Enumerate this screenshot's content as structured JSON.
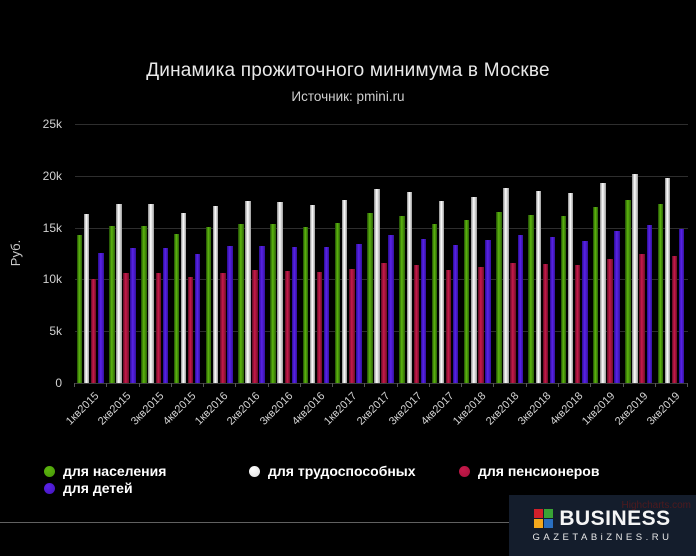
{
  "chart": {
    "title": "Динамика прожиточного минимума в Москве",
    "subtitle": "Источник: pmini.ru",
    "ylabel": "Руб."
  },
  "chart_data": {
    "type": "bar",
    "title": "Динамика прожиточного минимума в Москве",
    "subtitle": "Источник: pmini.ru",
    "xlabel": "",
    "ylabel": "Руб.",
    "ylim": [
      0,
      25000
    ],
    "grid": true,
    "legend_position": "bottom-left",
    "yticks": [
      {
        "value": 0,
        "label": "0"
      },
      {
        "value": 5000,
        "label": "5k"
      },
      {
        "value": 10000,
        "label": "10k"
      },
      {
        "value": 15000,
        "label": "15k"
      },
      {
        "value": 20000,
        "label": "20k"
      },
      {
        "value": 25000,
        "label": "25k"
      }
    ],
    "categories": [
      "1кв2015",
      "2кв2015",
      "3кв2015",
      "4кв2015",
      "1кв2016",
      "2кв2016",
      "3кв2016",
      "4кв2016",
      "1кв2017",
      "2кв2017",
      "3кв2017",
      "4кв2017",
      "1кв2018",
      "2кв2018",
      "3кв2018",
      "4кв2018",
      "1кв2019",
      "2кв2019",
      "3кв2019"
    ],
    "series": [
      {
        "name": "для населения",
        "color": "#4da00a",
        "gradient": [
          "#1f4a04",
          "#5cb50e",
          "#2c6306"
        ],
        "values": [
          14300,
          15141,
          15141,
          14413,
          15041,
          15382,
          15307,
          15092,
          15477,
          16426,
          16160,
          15397,
          15786,
          16463,
          16260,
          16087,
          16957,
          17679,
          17329
        ]
      },
      {
        "name": "для трудоспособных",
        "color": "#e8e8e8",
        "gradient": [
          "#8a8a8a",
          "#ffffff",
          "#9b9b9b"
        ],
        "values": [
          16296,
          17296,
          17296,
          16438,
          17130,
          17561,
          17487,
          17219,
          17642,
          18742,
          18453,
          17560,
          17990,
          18781,
          18580,
          18376,
          19351,
          20195,
          19797
        ]
      },
      {
        "name": "для пенсионеров",
        "color": "#b01440",
        "gradient": [
          "#5f0c22",
          "#c8194b",
          "#6e0e28"
        ],
        "values": [
          10075,
          10670,
          10670,
          10227,
          10623,
          10883,
          10823,
          10715,
          10965,
          11603,
          11420,
          10929,
          11157,
          11609,
          11505,
          11424,
          12005,
          12487,
          12253
        ]
      },
      {
        "name": "для детей",
        "color": "#4a18c8",
        "gradient": [
          "#2a0d93",
          "#5a23e8",
          "#33109f"
        ],
        "values": [
          12561,
          13080,
          13080,
          12437,
          13198,
          13259,
          13159,
          13101,
          13441,
          14252,
          13938,
          13300,
          13787,
          14329,
          14129,
          13747,
          14647,
          15225,
          14889
        ]
      }
    ]
  },
  "watermark": "Highcharts.com",
  "logo": {
    "line1": "BUSINESS",
    "line2": "GAZETABiZNES.RU",
    "background": "#141d2c",
    "squares": [
      "#d2202a",
      "#39a335",
      "#f4a81d",
      "#2a6fc0"
    ]
  }
}
